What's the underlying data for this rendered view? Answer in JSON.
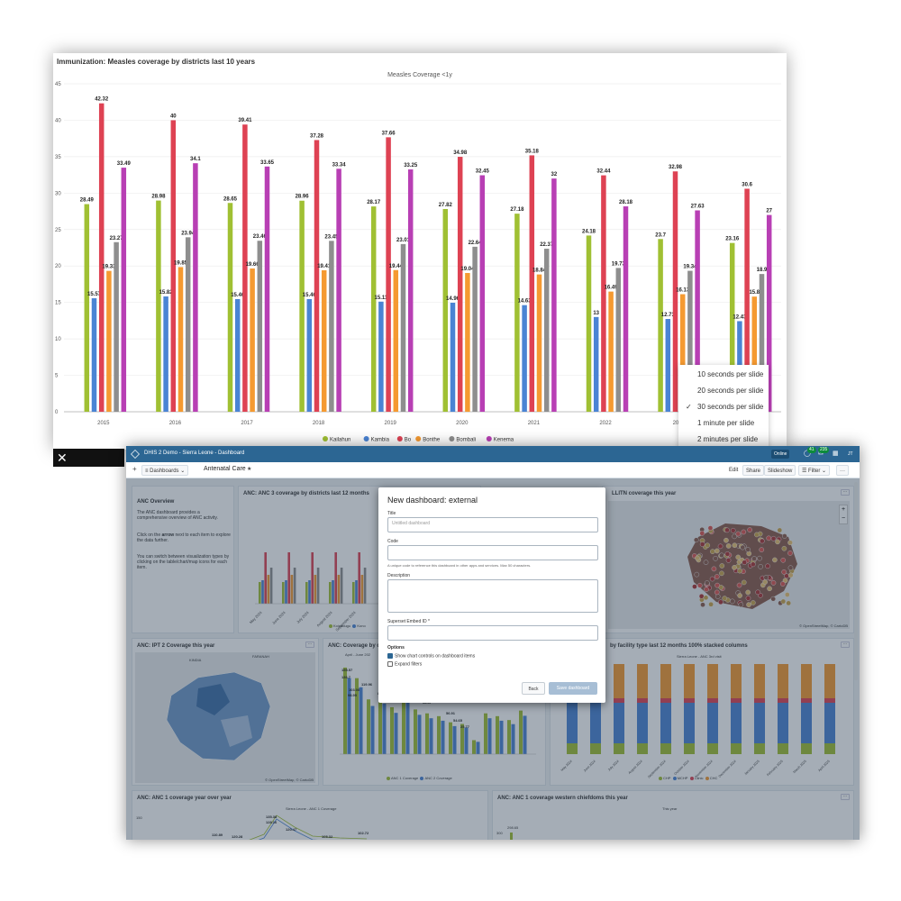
{
  "chart_card": {
    "title": "Immunization: Measles coverage by districts last 10 years"
  },
  "chart_data": {
    "type": "bar",
    "subtitle": "Measles Coverage <1y",
    "categories": [
      "2015",
      "2016",
      "2017",
      "2018",
      "2019",
      "2020",
      "2021",
      "2022",
      "2023",
      "2024"
    ],
    "category_labels": [
      "2015",
      "2016",
      "2017",
      "2018",
      "2019",
      "2020",
      "2021",
      "2022",
      "202",
      ""
    ],
    "ylim": [
      0,
      45
    ],
    "yticks": [
      0,
      5,
      10,
      15,
      20,
      25,
      30,
      35,
      40,
      45
    ],
    "series": [
      {
        "name": "Kailahun",
        "color": "#a0c033",
        "values": [
          28.49,
          28.98,
          28.65,
          28.96,
          28.17,
          27.82,
          27.18,
          24.18,
          23.7,
          23.16
        ]
      },
      {
        "name": "Kambia",
        "color": "#4a84d4",
        "values": [
          15.57,
          15.82,
          15.46,
          15.46,
          15.11,
          14.96,
          14.63,
          13,
          12.73,
          12.43
        ]
      },
      {
        "name": "Bo",
        "color": "#de4253",
        "values": [
          42.32,
          40,
          39.41,
          37.28,
          37.66,
          34.98,
          35.18,
          32.44,
          32.98,
          30.6
        ]
      },
      {
        "name": "Bonthe",
        "color": "#f59a31",
        "values": [
          19.33,
          19.85,
          19.66,
          19.41,
          19.44,
          19.04,
          18.84,
          16.49,
          16.13,
          15.8
        ]
      },
      {
        "name": "Bombali",
        "color": "#8e8e8e",
        "values": [
          23.27,
          23.94,
          23.46,
          23.45,
          23.01,
          22.64,
          22.37,
          19.73,
          19.34,
          18.9
        ]
      },
      {
        "name": "Kenema",
        "color": "#b83fb4",
        "values": [
          33.49,
          34.1,
          33.65,
          33.34,
          33.25,
          32.45,
          32,
          28.18,
          27.63,
          27
        ]
      }
    ],
    "data_labels": [
      [
        "28.49",
        "15.57",
        "42.32",
        "23.27",
        "33.49",
        "19.33"
      ],
      [
        "28.98",
        "15.82",
        "40",
        "23.94",
        "34.1",
        "19.85"
      ],
      [
        "28.65",
        "15.46",
        "39.41",
        "23.46",
        "33.65",
        "19.66"
      ],
      [
        "28.96",
        "15.46",
        "37.28",
        "23.45",
        "33.34",
        "19.41"
      ],
      [
        "28.17",
        "15.11",
        "37.66",
        "23.01",
        "33.25",
        "19.44"
      ],
      [
        "27.82",
        "14.96",
        "34.98",
        "22.64",
        "32.45",
        "19.04"
      ],
      [
        "27.18",
        "14.63",
        "35.18",
        "22.37",
        "32",
        "18.84"
      ],
      [
        "24.18",
        "13",
        "32.44",
        "19.73",
        "28.18",
        "16.49"
      ],
      [
        "23.7",
        "12.73",
        "32.98",
        "19.34",
        "27.63",
        "16.13"
      ],
      [
        "23.16",
        "12.43",
        "30.6",
        "18.9",
        "27",
        "15.8"
      ]
    ]
  },
  "speed_menu": {
    "items": [
      "10 seconds per slide",
      "20 seconds per slide",
      "30 seconds per slide",
      "1 minute per slide",
      "2 minutes per slide"
    ],
    "selected_index": 2,
    "check": "✓"
  },
  "close_glyph": "✕",
  "header": {
    "title": "DHIS 2 Demo - Sierra Leone - Dashboard",
    "online": "Online",
    "badge1": "41",
    "badge2": "235",
    "apps_icon": "▦",
    "user": "JT"
  },
  "toolbar": {
    "add": "+",
    "dashboards": "Dashboards",
    "dashboard_name": "Antenatal Care",
    "star": "★",
    "edit": "Edit",
    "share": "Share",
    "slideshow": "Slideshow",
    "filter": "Filter",
    "more": "···"
  },
  "items": {
    "anc_overview_title": "ANC Overview",
    "anc_overview_p1": "The ANC dashboard provides a comprehensive overview of ANC activity.",
    "anc_overview_p2_a": "Click on the ",
    "anc_overview_p2_b": "arrow",
    "anc_overview_p2_c": " next to each item to explore the data further.",
    "anc_overview_p3": "You can switch between visualization types by clicking on the table/chart/map icons for each item.",
    "anc3_title": "ANC: ANC 3 coverage by districts last 12 months",
    "anc3_months": [
      "May 2024",
      "June 2024",
      "July 2024",
      "August 2024",
      "September 2024"
    ],
    "anc3_legend": [
      "Koinadugu",
      "Kono"
    ],
    "map_title": "LLITN coverage this year",
    "map_attr": "© OpenStreetMap, © CartoDB",
    "map_zoom_in": "+",
    "map_zoom_out": "−",
    "ipt_title": "ANC: IPT 2 Coverage this year",
    "ipt_place": "KINDIA",
    "ipt_place2": "FARANAH",
    "anc_qtr_title": "ANC: Coverage by qu",
    "anc_qtr_sub": "April - June 202",
    "anc_qtr_values": [
      "155.57",
      "136.7",
      "119.96",
      "103.08",
      "98.95",
      "84.88",
      "80.79",
      "73.16",
      "68.67",
      "56.91",
      "54.65",
      "25.77",
      "73.88",
      "68.08",
      "61.23",
      "78.35"
    ],
    "anc_qtr_legend": [
      "ANC 1 Coverage",
      "ANC 2 Coverage"
    ],
    "facility_title": "by facility type last 12 months 100% stacked columns",
    "facility_sub": "Sierra Leone - ANC 3rd visit",
    "facility_months": [
      "May 2024",
      "June 2024",
      "July 2024",
      "August 2024",
      "September 2024",
      "October 2024",
      "November 2024",
      "December 2024",
      "January 2025",
      "February 2025",
      "March 2025",
      "April 2025"
    ],
    "facility_legend": [
      "CHP",
      "MCHP",
      "Clinic",
      "CHC"
    ],
    "anc1_year_title": "ANC: ANC 1 coverage year over year",
    "anc1_year_sub": "Sierra Leone - ANC 1 Coverage",
    "anc1_year_tick": "150",
    "anc1_year_vals": [
      "135.38",
      "128.16",
      "120.47",
      "120.28",
      "110.89",
      "105.32",
      "102.72"
    ],
    "western_title": "ANC: ANC 1 coverage western chiefdoms this year",
    "western_sub": "This year",
    "western_tick": "300",
    "western_val": "298.65"
  },
  "modal": {
    "title": "New dashboard: external",
    "title_label": "Title",
    "title_placeholder": "Untitled dashboard",
    "code_label": "Code",
    "code_help": "A unique code to reference this dashboard in other apps and services. Max 50 characters.",
    "description_label": "Description",
    "superset_label": "Superset Embed ID *",
    "options_label": "Options",
    "option1": "Show chart controls on dashboard items",
    "option2": "Expand filters",
    "back": "Back",
    "save": "Save dashboard"
  }
}
